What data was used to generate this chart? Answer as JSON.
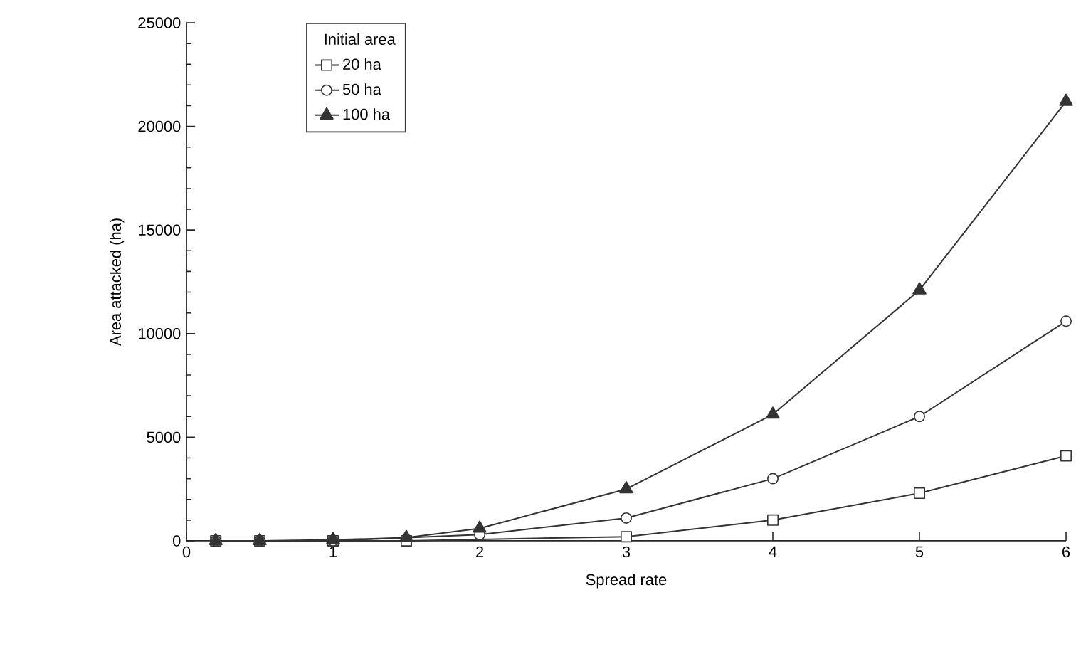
{
  "chart_data": {
    "type": "line",
    "xlabel": "Spread rate",
    "ylabel": "Area attacked  (ha)",
    "legend_title": "Initial area",
    "x": [
      0.2,
      0.5,
      1,
      1.5,
      2,
      3,
      4,
      5,
      6
    ],
    "series": [
      {
        "name": "20 ha",
        "color": "#333333",
        "marker": "square",
        "values": [
          0,
          0,
          0,
          0,
          null,
          200,
          1000,
          2300,
          4100
        ]
      },
      {
        "name": "50 ha",
        "color": "#333333",
        "marker": "circle",
        "values": [
          0,
          0,
          0,
          null,
          300,
          1100,
          3000,
          6000,
          10600
        ]
      },
      {
        "name": "100 ha",
        "color": "#333333",
        "marker": "triangle",
        "values": [
          0,
          0,
          50,
          150,
          600,
          2500,
          6100,
          12100,
          21200
        ]
      }
    ],
    "xlim": [
      0,
      6
    ],
    "ylim": [
      0,
      25000
    ],
    "xticks": [
      0,
      1,
      2,
      3,
      4,
      5,
      6
    ],
    "yticks": [
      0,
      5000,
      10000,
      15000,
      20000,
      25000
    ],
    "legend": "top left",
    "grid": false,
    "line_style": "solid"
  }
}
